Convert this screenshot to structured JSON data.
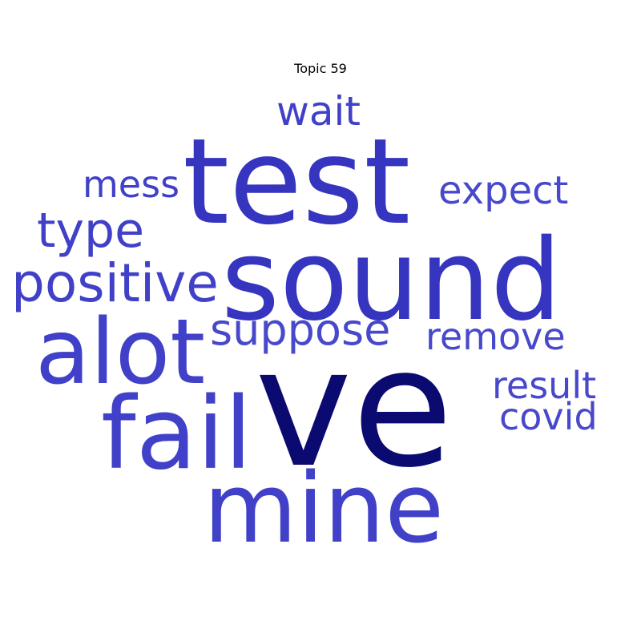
{
  "title": "Topic 59",
  "colors": {
    "background": "#ffffff",
    "title": "#000000",
    "strong": "#0a0a70",
    "dark": "#3535c0",
    "medium": "#4040c8",
    "light": "#4848cc"
  },
  "words": [
    {
      "text": "ve",
      "tone": "strong"
    },
    {
      "text": "test",
      "tone": "dark"
    },
    {
      "text": "sound",
      "tone": "dark"
    },
    {
      "text": "mine",
      "tone": "medium"
    },
    {
      "text": "fail",
      "tone": "medium"
    },
    {
      "text": "alot",
      "tone": "medium"
    },
    {
      "text": "positive",
      "tone": "medium"
    },
    {
      "text": "suppose",
      "tone": "light"
    },
    {
      "text": "type",
      "tone": "medium"
    },
    {
      "text": "wait",
      "tone": "medium"
    },
    {
      "text": "mess",
      "tone": "medium"
    },
    {
      "text": "expect",
      "tone": "light"
    },
    {
      "text": "remove",
      "tone": "light"
    },
    {
      "text": "result",
      "tone": "light"
    },
    {
      "text": "covid",
      "tone": "light"
    }
  ]
}
